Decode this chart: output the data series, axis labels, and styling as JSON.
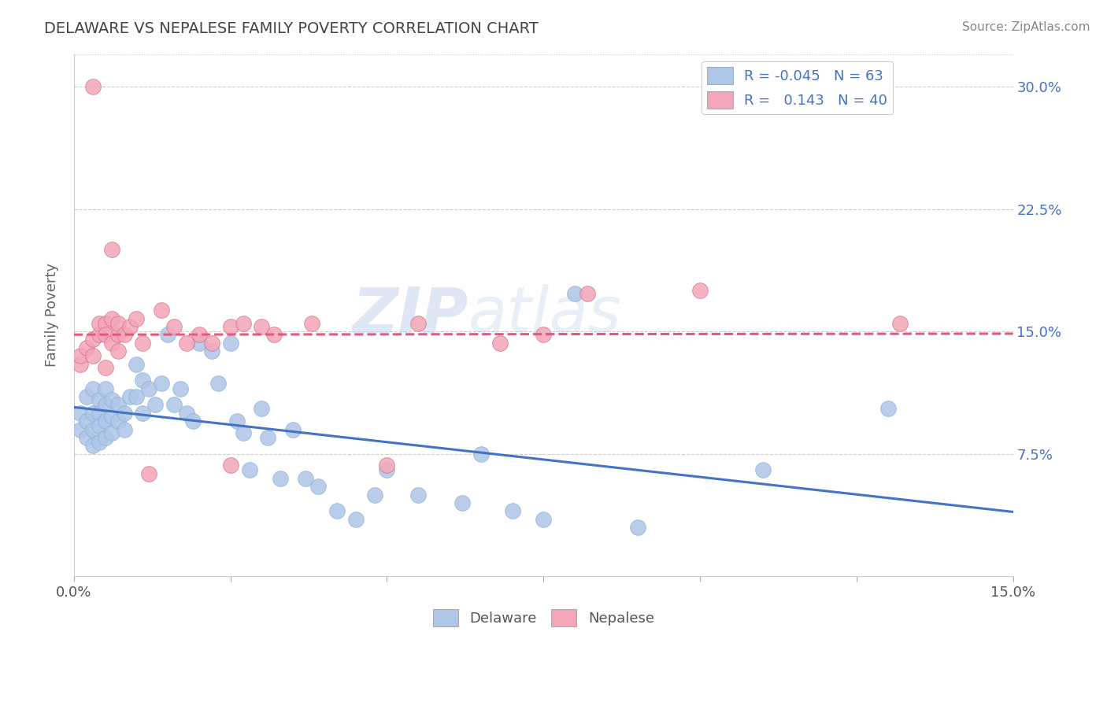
{
  "title": "DELAWARE VS NEPALESE FAMILY POVERTY CORRELATION CHART",
  "source": "Source: ZipAtlas.com",
  "ylabel": "Family Poverty",
  "xlim": [
    0.0,
    0.15
  ],
  "ylim": [
    0.0,
    0.32
  ],
  "watermark": "ZIPatlas",
  "delaware_color": "#aec6e8",
  "nepalese_color": "#f4a6b8",
  "delaware_line_color": "#4472c4",
  "nepalese_line_color": "#e05a7a",
  "delaware_R": -0.045,
  "delaware_N": 63,
  "nepalese_R": 0.143,
  "nepalese_N": 40,
  "delaware_x": [
    0.001,
    0.001,
    0.002,
    0.002,
    0.002,
    0.003,
    0.003,
    0.003,
    0.003,
    0.004,
    0.004,
    0.004,
    0.004,
    0.005,
    0.005,
    0.005,
    0.005,
    0.006,
    0.006,
    0.006,
    0.007,
    0.007,
    0.008,
    0.008,
    0.009,
    0.01,
    0.01,
    0.011,
    0.011,
    0.012,
    0.013,
    0.014,
    0.015,
    0.016,
    0.017,
    0.018,
    0.019,
    0.02,
    0.022,
    0.023,
    0.025,
    0.026,
    0.027,
    0.028,
    0.03,
    0.031,
    0.033,
    0.035,
    0.037,
    0.039,
    0.042,
    0.045,
    0.048,
    0.05,
    0.055,
    0.062,
    0.065,
    0.07,
    0.075,
    0.08,
    0.09,
    0.11,
    0.13
  ],
  "delaware_y": [
    0.1,
    0.09,
    0.11,
    0.095,
    0.085,
    0.115,
    0.1,
    0.09,
    0.08,
    0.108,
    0.1,
    0.092,
    0.082,
    0.115,
    0.105,
    0.095,
    0.085,
    0.108,
    0.098,
    0.088,
    0.105,
    0.095,
    0.1,
    0.09,
    0.11,
    0.13,
    0.11,
    0.12,
    0.1,
    0.115,
    0.105,
    0.118,
    0.148,
    0.105,
    0.115,
    0.1,
    0.095,
    0.143,
    0.138,
    0.118,
    0.143,
    0.095,
    0.088,
    0.065,
    0.103,
    0.085,
    0.06,
    0.09,
    0.06,
    0.055,
    0.04,
    0.035,
    0.05,
    0.065,
    0.05,
    0.045,
    0.075,
    0.04,
    0.035,
    0.173,
    0.03,
    0.065,
    0.103
  ],
  "nepalese_x": [
    0.001,
    0.001,
    0.002,
    0.003,
    0.003,
    0.003,
    0.004,
    0.004,
    0.005,
    0.005,
    0.005,
    0.006,
    0.006,
    0.006,
    0.007,
    0.007,
    0.007,
    0.008,
    0.009,
    0.01,
    0.011,
    0.012,
    0.014,
    0.016,
    0.018,
    0.02,
    0.022,
    0.025,
    0.025,
    0.027,
    0.03,
    0.032,
    0.038,
    0.05,
    0.055,
    0.068,
    0.075,
    0.082,
    0.1,
    0.132
  ],
  "nepalese_y": [
    0.13,
    0.135,
    0.14,
    0.3,
    0.145,
    0.135,
    0.148,
    0.155,
    0.155,
    0.148,
    0.128,
    0.158,
    0.143,
    0.2,
    0.148,
    0.138,
    0.155,
    0.148,
    0.153,
    0.158,
    0.143,
    0.063,
    0.163,
    0.153,
    0.143,
    0.148,
    0.143,
    0.153,
    0.068,
    0.155,
    0.153,
    0.148,
    0.155,
    0.068,
    0.155,
    0.143,
    0.148,
    0.173,
    0.175,
    0.155
  ],
  "grid_color": "#cccccc",
  "background_color": "#ffffff"
}
